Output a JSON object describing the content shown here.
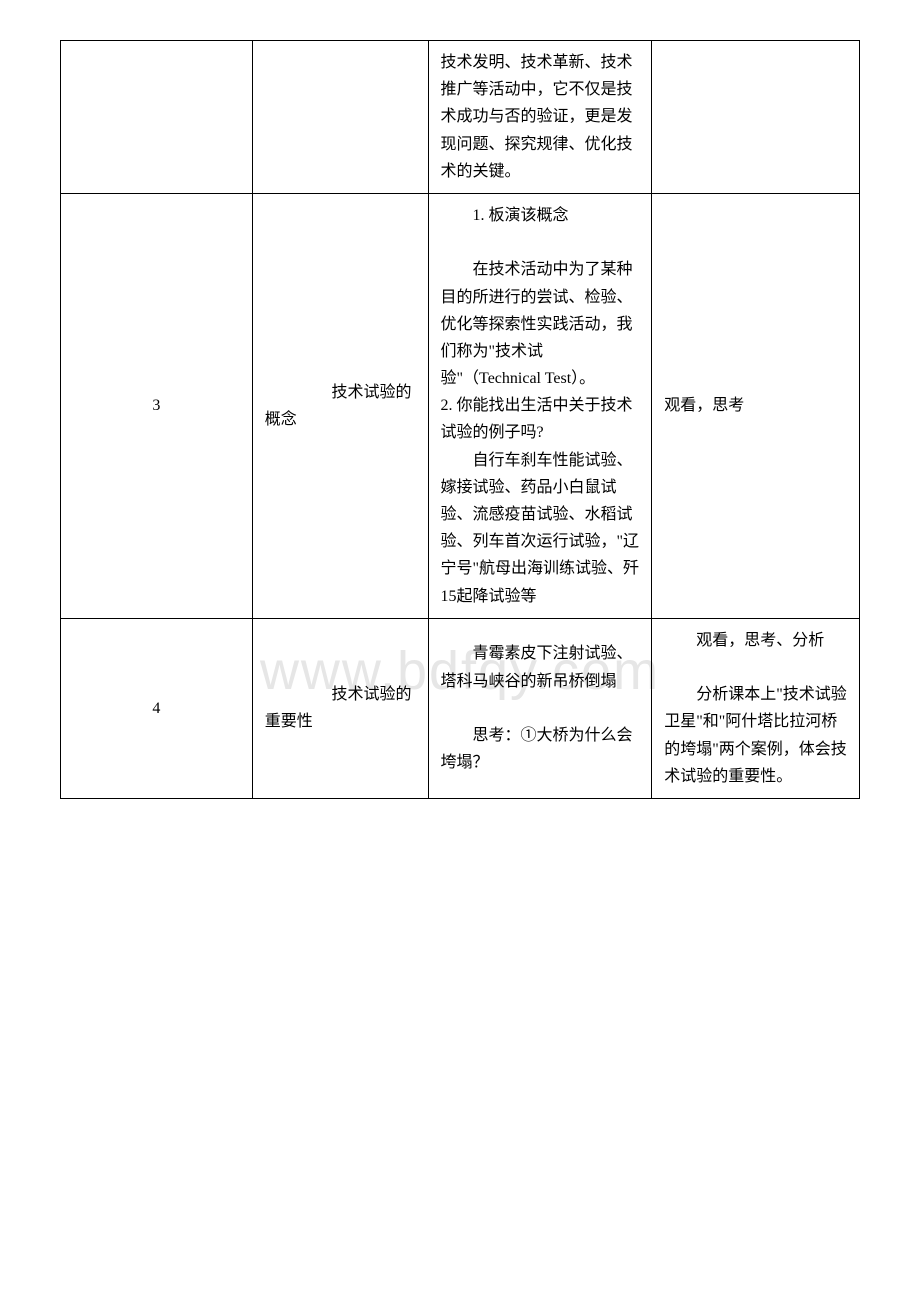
{
  "watermark": "www.bdfqy.com",
  "rows": [
    {
      "col1": "",
      "col2": "",
      "col3": "技术发明、技术革新、技术推广等活动中，它不仅是技术成功与否的验证，更是发现问题、探究规律、优化技术的关键。",
      "col4": ""
    },
    {
      "col1": "3",
      "col2_line1": "技术试验的",
      "col2_line2": "概念",
      "col3_p1": "1. 板演该概念",
      "col3_p2": "在技术活动中为了某种目的所进行的尝试、检验、优化等探索性实践活动，我们称为\"技术试验\"（Technical Test）。",
      "col3_p3": "2. 你能找出生活中关于技术试验的例子吗?",
      "col3_p4": "自行车刹车性能试验、嫁接试验、药品小白鼠试验、流感疫苗试验、水稻试验、列车首次运行试验，\"辽宁号\"航母出海训练试验、歼15起降试验等",
      "col4": "观看，思考"
    },
    {
      "col1": "4",
      "col2_line1": "技术试验的",
      "col2_line2": "重要性",
      "col3_p1": "青霉素皮下注射试验、塔科马峡谷的新吊桥倒塌",
      "col3_p2": "思考：①大桥为什么会垮塌？",
      "col4_p1": "观看，思考、分析",
      "col4_p2": "分析课本上\"技术试验卫星\"和\"阿什塔比拉河桥的垮塌\"两个案例，体会技术试验的重要性。"
    }
  ]
}
